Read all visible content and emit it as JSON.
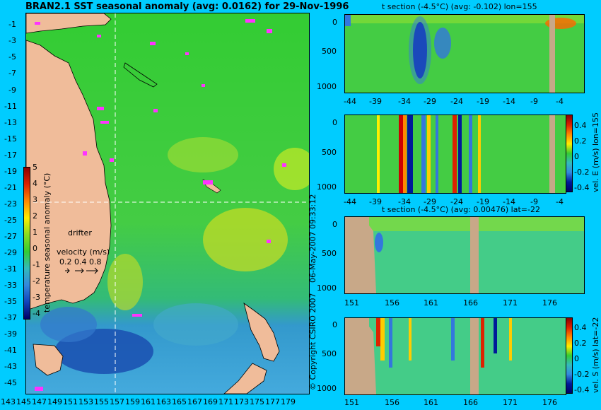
{
  "main_title": "BRAN2.1 SST seasonal anomaly (avg: 0.0162) for 29-Nov-1996",
  "map": {
    "lat_ticks": [
      "-1",
      "-3",
      "-5",
      "-7",
      "-9",
      "-11",
      "-13",
      "-15",
      "-17",
      "-19",
      "-21",
      "-23",
      "-25",
      "-27",
      "-29",
      "-31",
      "-33",
      "-35",
      "-37",
      "-39",
      "-41",
      "-43",
      "-45"
    ],
    "lon_ticks": [
      "143",
      "145",
      "147",
      "149",
      "151",
      "153",
      "155",
      "157",
      "159",
      "161",
      "163",
      "165",
      "167",
      "169",
      "171",
      "173",
      "175",
      "177",
      "179"
    ],
    "colorbar_ticks": [
      "5",
      "4",
      "3",
      "2",
      "1",
      "0",
      "-1",
      "-2",
      "-3",
      "-4"
    ],
    "colorbar_label": "temperature seasonal anomaly (°C)",
    "drifter_label": "drifter",
    "velocity_label": "velocity (m/s)",
    "velocity_scale": "0.2 0.4 0.8",
    "colors": {
      "ocean_mid": "#33cc33",
      "cold": "#0033aa",
      "warm": "#ffee00",
      "land": "#f0bc9a",
      "drifter": "#ff33ff"
    }
  },
  "panel1": {
    "title": "t section (-4.5°C) (avg: -0.102) lon=155",
    "y_ticks": [
      "0",
      "500",
      "1000"
    ],
    "x_ticks": [
      "-44",
      "-39",
      "-34",
      "-29",
      "-24",
      "-19",
      "-14",
      "-9",
      "-4"
    ]
  },
  "panel2": {
    "y_ticks": [
      "0",
      "500",
      "1000"
    ],
    "x_ticks": [
      "-44",
      "-39",
      "-34",
      "-29",
      "-24",
      "-19",
      "-14",
      "-9",
      "-4"
    ],
    "colorbar_ticks": [
      "0.4",
      "0.2",
      "0",
      "-0.2",
      "-0.4"
    ],
    "colorbar_label": "vel. E (m/s) lon=155"
  },
  "panel3": {
    "title": "t section (-4.5°C) (avg: 0.00476) lat=-22",
    "y_ticks": [
      "0",
      "500",
      "1000"
    ],
    "x_ticks": [
      "151",
      "156",
      "161",
      "166",
      "171",
      "176"
    ]
  },
  "panel4": {
    "y_ticks": [
      "0",
      "500",
      "1000"
    ],
    "x_ticks": [
      "151",
      "156",
      "161",
      "166",
      "171",
      "176"
    ],
    "colorbar_ticks": [
      "0.4",
      "0.2",
      "0",
      "-0.2",
      "-0.4"
    ],
    "colorbar_label": "vel. S (m/s) lat=-22"
  },
  "timestamp": "06-May-2007 09:33:12",
  "copyright": "© Copyright CSIRO 2007"
}
